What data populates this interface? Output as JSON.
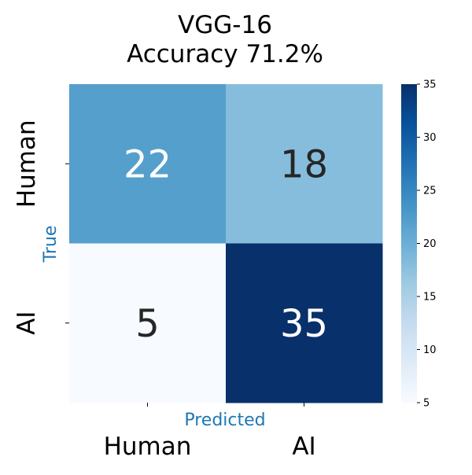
{
  "chart_data": {
    "type": "heatmap",
    "title_lines": [
      "VGG-16",
      "Accuracy 71.2%"
    ],
    "xlabel": "Predicted",
    "ylabel": "True",
    "x_categories": [
      "Human",
      "AI"
    ],
    "y_categories": [
      "Human",
      "AI"
    ],
    "matrix": [
      [
        22,
        18
      ],
      [
        5,
        35
      ]
    ],
    "colorbar": {
      "vmin": 5,
      "vmax": 35,
      "ticks": [
        5,
        10,
        15,
        20,
        25,
        30,
        35
      ],
      "colormap": "Blues"
    },
    "label_color": "#1f77b4"
  }
}
